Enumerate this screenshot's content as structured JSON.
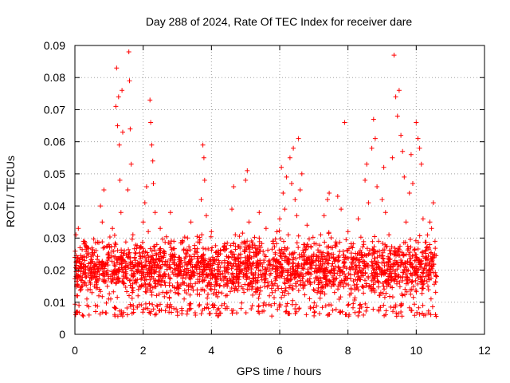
{
  "chart_data": {
    "type": "scatter",
    "title": "Day 288 of 2024, Rate Of TEC Index for receiver dare",
    "xlabel": "GPS time / hours",
    "ylabel": "ROTI / TECUs",
    "xlim": [
      0,
      12
    ],
    "ylim": [
      0,
      0.09
    ],
    "xticks": [
      0,
      2,
      4,
      6,
      8,
      10,
      12
    ],
    "xtick_labels": [
      "0",
      "2",
      "4",
      "6",
      "8",
      "10",
      "12"
    ],
    "yticks": [
      0,
      0.01,
      0.02,
      0.03,
      0.04,
      0.05,
      0.06,
      0.07,
      0.08,
      0.09
    ],
    "ytick_labels": [
      "0",
      "0.01",
      "0.02",
      "0.03",
      "0.04",
      "0.05",
      "0.06",
      "0.07",
      "0.08",
      "0.09"
    ],
    "grid": true,
    "marker": "+",
    "color": "#ff0000",
    "series": [
      {
        "name": "ROTI",
        "points": [
          [
            0.0,
            0.024
          ],
          [
            0.03,
            0.031
          ],
          [
            0.05,
            0.018
          ],
          [
            0.08,
            0.012
          ],
          [
            0.1,
            0.033
          ],
          [
            0.12,
            0.009
          ],
          [
            0.15,
            0.027
          ],
          [
            0.18,
            0.014
          ],
          [
            0.2,
            0.022
          ],
          [
            0.22,
            0.006
          ],
          [
            0.25,
            0.029
          ],
          [
            0.3,
            0.016
          ],
          [
            0.35,
            0.011
          ],
          [
            0.4,
            0.025
          ],
          [
            0.45,
            0.019
          ],
          [
            0.5,
            0.013
          ],
          [
            0.55,
            0.021
          ],
          [
            0.6,
            0.009
          ],
          [
            0.65,
            0.017
          ],
          [
            0.7,
            0.012
          ],
          [
            0.75,
            0.04
          ],
          [
            0.8,
            0.035
          ],
          [
            0.85,
            0.045
          ],
          [
            0.9,
            0.022
          ],
          [
            0.95,
            0.015
          ],
          [
            1.0,
            0.028
          ],
          [
            1.05,
            0.011
          ],
          [
            1.1,
            0.033
          ],
          [
            1.15,
            0.02
          ],
          [
            1.2,
            0.071
          ],
          [
            1.22,
            0.083
          ],
          [
            1.25,
            0.065
          ],
          [
            1.28,
            0.074
          ],
          [
            1.3,
            0.059
          ],
          [
            1.32,
            0.048
          ],
          [
            1.35,
            0.038
          ],
          [
            1.38,
            0.076
          ],
          [
            1.4,
            0.063
          ],
          [
            1.45,
            0.026
          ],
          [
            1.5,
            0.019
          ],
          [
            1.55,
            0.045
          ],
          [
            1.58,
            0.088
          ],
          [
            1.6,
            0.079
          ],
          [
            1.62,
            0.064
          ],
          [
            1.65,
            0.053
          ],
          [
            1.7,
            0.031
          ],
          [
            1.75,
            0.024
          ],
          [
            1.8,
            0.016
          ],
          [
            1.85,
            0.012
          ],
          [
            1.9,
            0.027
          ],
          [
            1.95,
            0.021
          ],
          [
            2.0,
            0.035
          ],
          [
            2.05,
            0.041
          ],
          [
            2.1,
            0.046
          ],
          [
            2.15,
            0.032
          ],
          [
            2.2,
            0.073
          ],
          [
            2.22,
            0.066
          ],
          [
            2.25,
            0.059
          ],
          [
            2.28,
            0.054
          ],
          [
            2.3,
            0.047
          ],
          [
            2.35,
            0.038
          ],
          [
            2.4,
            0.028
          ],
          [
            2.45,
            0.018
          ],
          [
            2.5,
            0.033
          ],
          [
            2.6,
            0.024
          ],
          [
            2.7,
            0.013
          ],
          [
            2.8,
            0.038
          ],
          [
            2.9,
            0.029
          ],
          [
            3.0,
            0.016
          ],
          [
            3.1,
            0.023
          ],
          [
            3.2,
            0.011
          ],
          [
            3.3,
            0.03
          ],
          [
            3.4,
            0.035
          ],
          [
            3.5,
            0.025
          ],
          [
            3.6,
            0.019
          ],
          [
            3.7,
            0.042
          ],
          [
            3.75,
            0.059
          ],
          [
            3.78,
            0.055
          ],
          [
            3.8,
            0.048
          ],
          [
            3.85,
            0.037
          ],
          [
            3.9,
            0.021
          ],
          [
            4.0,
            0.032
          ],
          [
            4.1,
            0.014
          ],
          [
            4.2,
            0.026
          ],
          [
            4.3,
            0.009
          ],
          [
            4.4,
            0.018
          ],
          [
            4.5,
            0.024
          ],
          [
            4.6,
            0.039
          ],
          [
            4.65,
            0.046
          ],
          [
            4.7,
            0.031
          ],
          [
            4.8,
            0.016
          ],
          [
            4.9,
            0.022
          ],
          [
            5.0,
            0.048
          ],
          [
            5.05,
            0.051
          ],
          [
            5.1,
            0.035
          ],
          [
            5.2,
            0.027
          ],
          [
            5.3,
            0.013
          ],
          [
            5.4,
            0.038
          ],
          [
            5.5,
            0.021
          ],
          [
            5.6,
            0.033
          ],
          [
            5.7,
            0.012
          ],
          [
            5.8,
            0.029
          ],
          [
            5.9,
            0.018
          ],
          [
            6.0,
            0.036
          ],
          [
            6.05,
            0.052
          ],
          [
            6.1,
            0.044
          ],
          [
            6.15,
            0.039
          ],
          [
            6.2,
            0.049
          ],
          [
            6.25,
            0.031
          ],
          [
            6.3,
            0.055
          ],
          [
            6.35,
            0.047
          ],
          [
            6.4,
            0.058
          ],
          [
            6.45,
            0.042
          ],
          [
            6.5,
            0.037
          ],
          [
            6.55,
            0.061
          ],
          [
            6.6,
            0.045
          ],
          [
            6.65,
            0.05
          ],
          [
            6.7,
            0.028
          ],
          [
            6.8,
            0.034
          ],
          [
            6.9,
            0.016
          ],
          [
            7.0,
            0.025
          ],
          [
            7.1,
            0.013
          ],
          [
            7.2,
            0.031
          ],
          [
            7.3,
            0.037
          ],
          [
            7.4,
            0.042
          ],
          [
            7.45,
            0.044
          ],
          [
            7.5,
            0.027
          ],
          [
            7.6,
            0.019
          ],
          [
            7.7,
            0.043
          ],
          [
            7.8,
            0.039
          ],
          [
            7.9,
            0.066
          ],
          [
            8.0,
            0.032
          ],
          [
            8.1,
            0.021
          ],
          [
            8.2,
            0.014
          ],
          [
            8.3,
            0.036
          ],
          [
            8.4,
            0.024
          ],
          [
            8.5,
            0.048
          ],
          [
            8.55,
            0.053
          ],
          [
            8.6,
            0.041
          ],
          [
            8.7,
            0.058
          ],
          [
            8.75,
            0.067
          ],
          [
            8.8,
            0.061
          ],
          [
            8.85,
            0.046
          ],
          [
            8.9,
            0.029
          ],
          [
            9.0,
            0.042
          ],
          [
            9.05,
            0.052
          ],
          [
            9.1,
            0.038
          ],
          [
            9.2,
            0.031
          ],
          [
            9.3,
            0.055
          ],
          [
            9.35,
            0.087
          ],
          [
            9.4,
            0.074
          ],
          [
            9.45,
            0.068
          ],
          [
            9.5,
            0.076
          ],
          [
            9.55,
            0.062
          ],
          [
            9.6,
            0.057
          ],
          [
            9.65,
            0.049
          ],
          [
            9.7,
            0.035
          ],
          [
            9.8,
            0.044
          ],
          [
            9.85,
            0.056
          ],
          [
            9.9,
            0.047
          ],
          [
            10.0,
            0.066
          ],
          [
            10.05,
            0.061
          ],
          [
            10.1,
            0.058
          ],
          [
            10.15,
            0.053
          ],
          [
            10.2,
            0.036
          ],
          [
            10.3,
            0.027
          ],
          [
            10.4,
            0.035
          ],
          [
            10.45,
            0.033
          ],
          [
            10.5,
            0.041
          ],
          [
            10.55,
            0.029
          ],
          [
            10.6,
            0.018
          ]
        ],
        "bulk_band": {
          "x_range": [
            0,
            10.6
          ],
          "typical_min": 0.008,
          "typical_max": 0.03,
          "point_count": 2400
        }
      }
    ]
  }
}
